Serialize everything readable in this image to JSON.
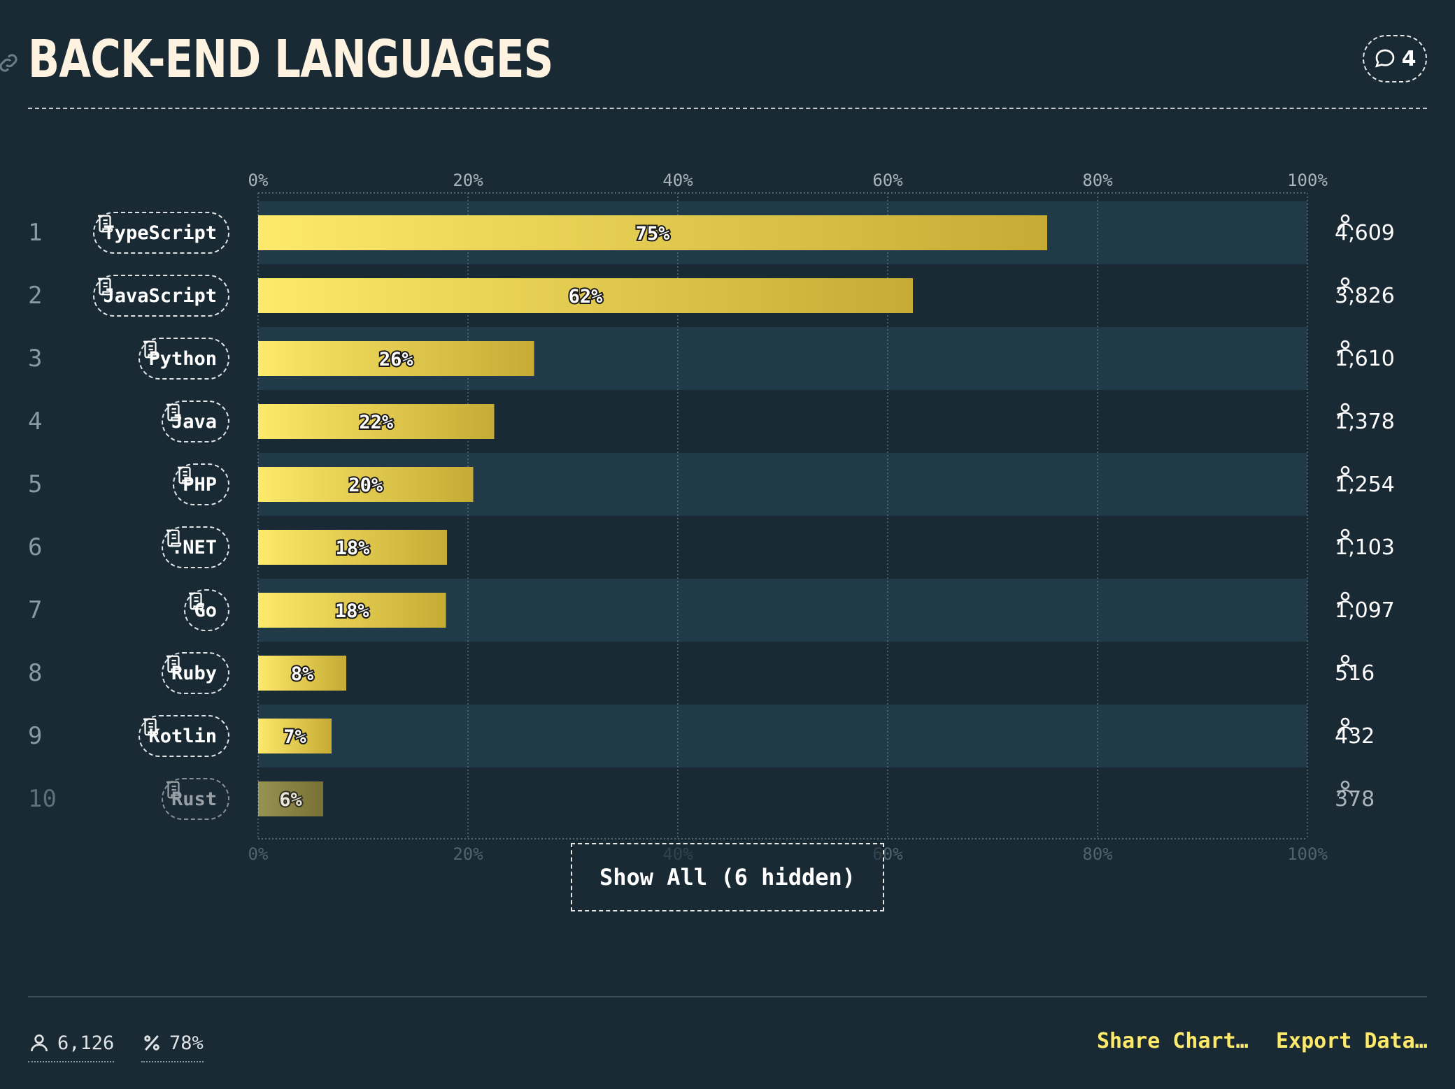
{
  "header": {
    "title": "BACK-END LANGUAGES",
    "comments_count": "4"
  },
  "chart_data": {
    "type": "bar",
    "orientation": "horizontal",
    "title": "BACK-END LANGUAGES",
    "xlim": [
      0,
      100
    ],
    "x_ticks": [
      "0%",
      "20%",
      "40%",
      "60%",
      "80%",
      "100%"
    ],
    "grid": true,
    "categories": [
      "TypeScript",
      "JavaScript",
      "Python",
      "Java",
      "PHP",
      ".NET",
      "Go",
      "Ruby",
      "Kotlin",
      "Rust"
    ],
    "ranks": [
      "1",
      "2",
      "3",
      "4",
      "5",
      "6",
      "7",
      "8",
      "9",
      "10"
    ],
    "values": [
      75.2,
      62.4,
      26.3,
      22.5,
      20.5,
      18.0,
      17.9,
      8.4,
      7.0,
      6.2
    ],
    "value_labels": [
      "75%",
      "62%",
      "26%",
      "22%",
      "20%",
      "18%",
      "18%",
      "8%",
      "7%",
      "6%"
    ],
    "counts": [
      "4,609",
      "3,826",
      "1,610",
      "1,378",
      "1,254",
      "1,103",
      "1,097",
      "516",
      "432",
      "378"
    ],
    "bar_gradient": [
      "#fde96a",
      "#c6ab34"
    ],
    "dimmed_index": 9
  },
  "show_all_label": "Show All (6 hidden)",
  "footer": {
    "respondents": "6,126",
    "percentage": "78%",
    "share_label": "Share Chart…",
    "export_label": "Export Data…"
  },
  "colors": {
    "background": "#192a35",
    "row_band": "#203a4a",
    "accent": "#fde96a"
  },
  "icons": [
    "link-icon",
    "comment-icon",
    "scroll-icon",
    "user-icon",
    "percent-icon"
  ]
}
